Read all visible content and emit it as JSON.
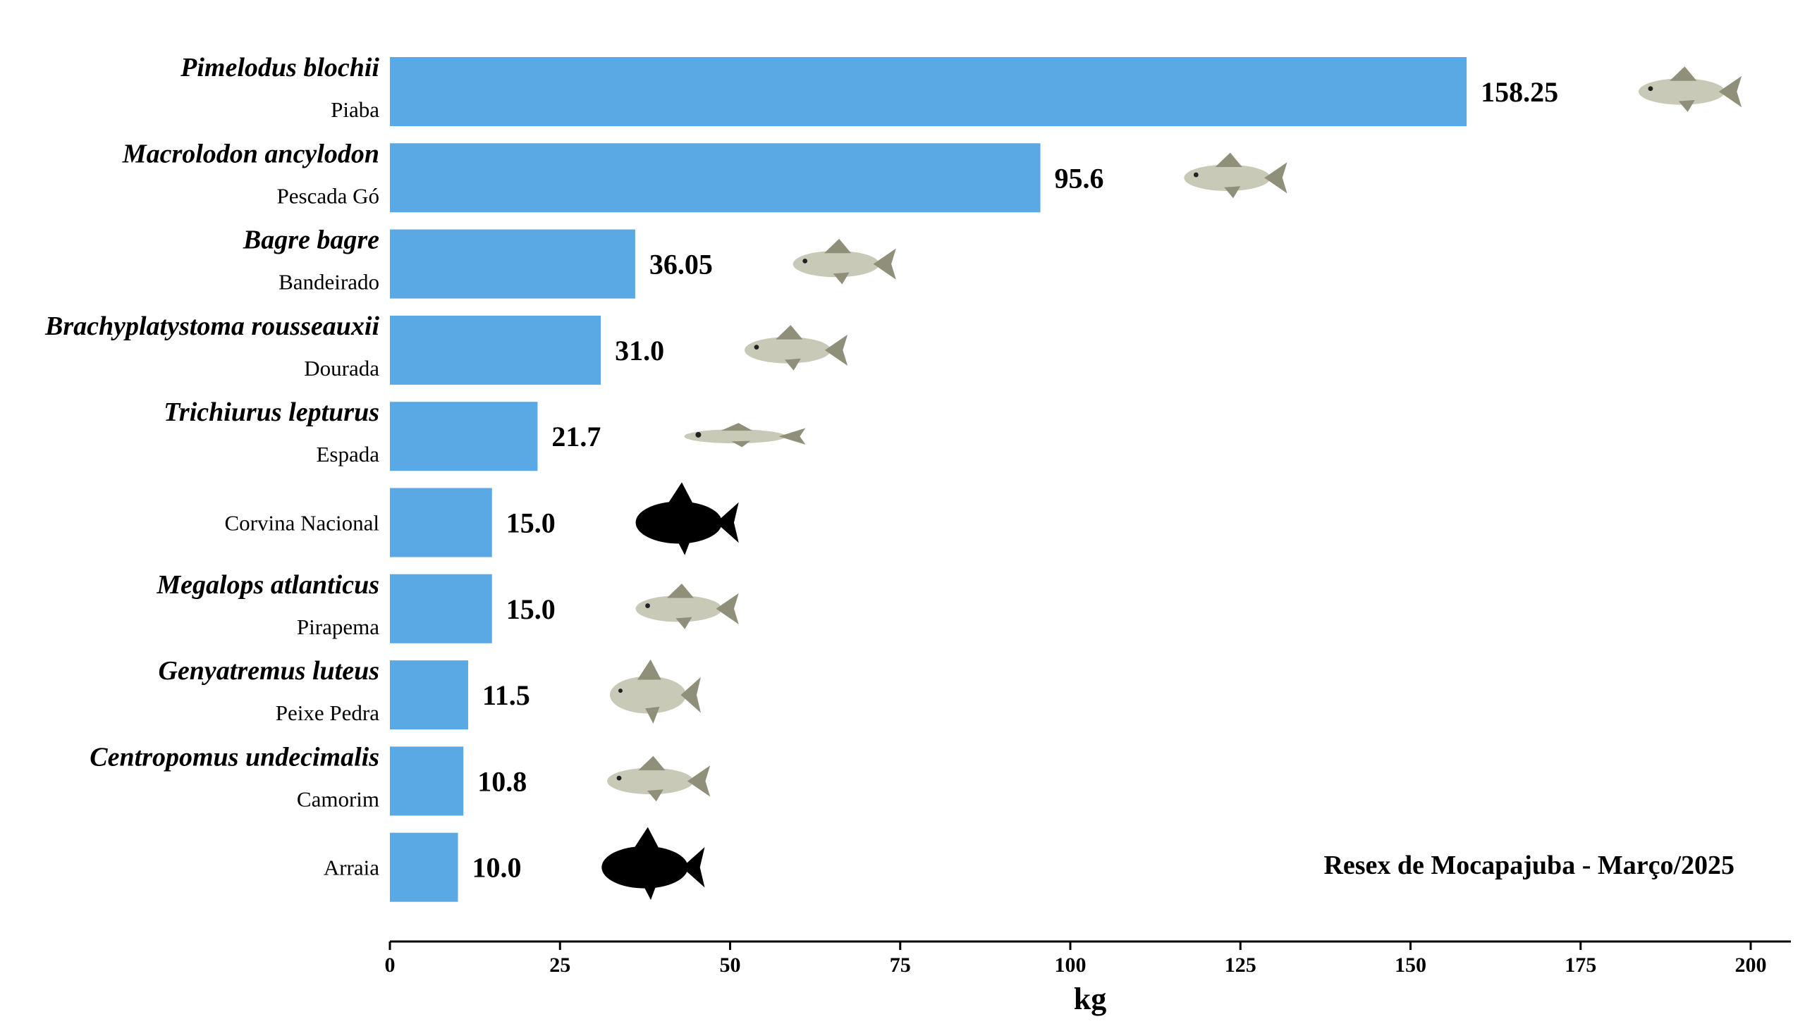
{
  "chart_data": {
    "type": "bar",
    "orientation": "horizontal",
    "xlabel": "kg",
    "ylabel": "",
    "xlim": [
      0,
      205
    ],
    "xticks": [
      0,
      25,
      50,
      75,
      100,
      125,
      150,
      175,
      200
    ],
    "grid": false,
    "annotation": "Resex de Mocapajuba - Março/2025",
    "bar_color": "#5aa8e4",
    "categories": [
      {
        "scientific": "Pimelodus blochii",
        "common": "Piaba",
        "value": 158.25,
        "value_label": "158.25",
        "icon": "catfish-photo-icon"
      },
      {
        "scientific": "Macrolodon ancylodon",
        "common": "Pescada Gó",
        "value": 95.6,
        "value_label": "95.6",
        "icon": "weakfish-photo-icon"
      },
      {
        "scientific": "Bagre bagre",
        "common": "Bandeirado",
        "value": 36.05,
        "value_label": "36.05",
        "icon": "flag-catfish-photo-icon"
      },
      {
        "scientific": "Brachyplatystoma rousseauxii",
        "common": "Dourada",
        "value": 31.0,
        "value_label": "31.0",
        "icon": "gilded-catfish-photo-icon"
      },
      {
        "scientific": "Trichiurus lepturus",
        "common": "Espada",
        "value": 21.7,
        "value_label": "21.7",
        "icon": "cutlassfish-photo-icon"
      },
      {
        "scientific": "",
        "common": "Corvina Nacional",
        "value": 15.0,
        "value_label": "15.0",
        "icon": "fish-silhouette-icon"
      },
      {
        "scientific": "Megalops atlanticus",
        "common": "Pirapema",
        "value": 15.0,
        "value_label": "15.0",
        "icon": "tarpon-photo-icon"
      },
      {
        "scientific": "Genyatremus luteus",
        "common": "Peixe Pedra",
        "value": 11.5,
        "value_label": "11.5",
        "icon": "grunt-photo-icon"
      },
      {
        "scientific": "Centropomus undecimalis",
        "common": "Camorim",
        "value": 10.8,
        "value_label": "10.8",
        "icon": "snook-photo-icon"
      },
      {
        "scientific": "",
        "common": "Arraia",
        "value": 10.0,
        "value_label": "10.0",
        "icon": "fish-silhouette-icon"
      }
    ]
  }
}
